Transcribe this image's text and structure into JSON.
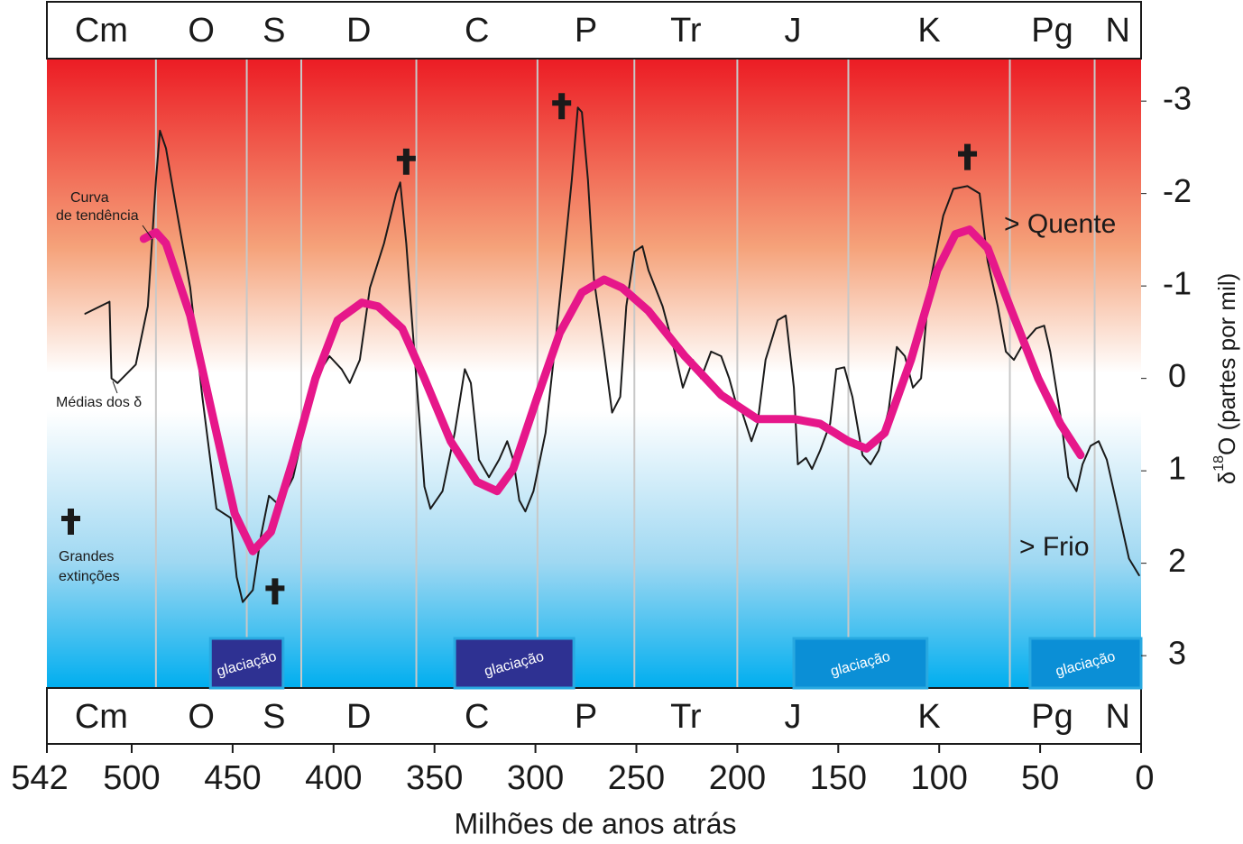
{
  "chart_data": {
    "type": "line",
    "xlabel": "Milhões de anos atrás",
    "ylabel": {
      "symbol": "δ",
      "sup": "18",
      "rest": "O (partes por mil)"
    },
    "xlim": [
      542,
      0
    ],
    "xticks": [
      542,
      500,
      450,
      400,
      350,
      300,
      250,
      200,
      150,
      100,
      50,
      0
    ],
    "ylim": [
      -3.46,
      3.35
    ],
    "y_inverted": true,
    "yticks": [
      -3,
      -2,
      -1,
      0,
      1,
      2,
      3
    ],
    "periods": [
      {
        "name": "Cm",
        "start": 542,
        "end": 488
      },
      {
        "name": "O",
        "start": 488,
        "end": 443
      },
      {
        "name": "S",
        "start": 443,
        "end": 416
      },
      {
        "name": "D",
        "start": 416,
        "end": 359
      },
      {
        "name": "C",
        "start": 359,
        "end": 299
      },
      {
        "name": "P",
        "start": 299,
        "end": 251
      },
      {
        "name": "Tr",
        "start": 251,
        "end": 200
      },
      {
        "name": "J",
        "start": 200,
        "end": 145
      },
      {
        "name": "K",
        "start": 145,
        "end": 65
      },
      {
        "name": "Pg",
        "start": 65,
        "end": 23
      },
      {
        "name": "N",
        "start": 23,
        "end": 0
      }
    ],
    "series": [
      {
        "color": "#1a1a1a",
        "x": [
          523,
          511,
          510,
          507,
          498,
          492,
          488,
          486,
          483,
          478,
          471,
          465,
          458,
          451,
          448,
          445,
          440,
          436,
          432,
          427,
          420,
          413,
          409,
          402,
          396,
          392,
          387,
          382,
          375,
          369,
          367,
          364,
          360,
          355,
          352,
          346,
          340,
          335,
          332,
          328,
          323,
          318,
          314,
          311,
          308,
          305,
          301,
          295,
          291,
          286,
          282,
          279,
          277,
          274,
          271,
          266,
          262,
          258,
          255,
          251,
          247,
          244,
          237,
          231,
          227,
          222,
          218,
          213,
          208,
          204,
          201,
          198,
          193,
          190,
          186,
          180,
          176,
          172,
          170,
          166,
          163,
          159,
          154,
          151,
          147,
          143,
          138,
          134,
          130,
          125,
          121,
          117,
          113,
          109,
          105,
          98,
          93,
          86,
          80,
          76,
          71,
          67,
          63,
          58,
          52,
          48,
          45,
          40,
          36,
          32,
          29,
          25,
          21,
          17,
          11,
          6,
          1
        ],
        "values": [
          -0.7,
          -0.83,
          0,
          0.05,
          -0.15,
          -0.78,
          -2.15,
          -2.68,
          -2.49,
          -1.85,
          -0.98,
          0.2,
          1.41,
          1.51,
          2.15,
          2.42,
          2.29,
          1.71,
          1.27,
          1.37,
          1.07,
          0.39,
          0,
          -0.24,
          -0.1,
          0.05,
          -0.2,
          -0.98,
          -1.46,
          -2.0,
          -2.12,
          -1.46,
          -0.29,
          1.17,
          1.41,
          1.22,
          0.59,
          -0.1,
          0.05,
          0.88,
          1.07,
          0.88,
          0.68,
          0.88,
          1.32,
          1.44,
          1.22,
          0.59,
          -0.2,
          -1.27,
          -2.15,
          -2.93,
          -2.88,
          -2.15,
          -1.07,
          -0.29,
          0.37,
          0.2,
          -0.78,
          -1.37,
          -1.43,
          -1.17,
          -0.78,
          -0.29,
          0.1,
          -0.2,
          0,
          -0.29,
          -0.24,
          0,
          0.24,
          0.34,
          0.68,
          0.49,
          -0.2,
          -0.63,
          -0.68,
          0.1,
          0.93,
          0.86,
          0.98,
          0.78,
          0.49,
          -0.1,
          -0.12,
          0.2,
          0.83,
          0.93,
          0.78,
          0.34,
          -0.34,
          -0.24,
          0.1,
          0,
          -0.98,
          -1.76,
          -2.05,
          -2.08,
          -2.0,
          -1.27,
          -0.78,
          -0.29,
          -0.2,
          -0.39,
          -0.54,
          -0.57,
          -0.29,
          0.39,
          1.07,
          1.22,
          0.93,
          0.73,
          0.68,
          0.88,
          1.46,
          1.95,
          2.13
        ]
      },
      {
        "color": "#e6178a",
        "x": [
          494,
          488,
          483,
          471,
          458,
          449,
          440,
          431,
          420,
          409,
          398,
          386,
          378,
          366,
          355,
          342,
          329,
          319,
          311,
          299,
          288,
          277,
          266,
          257,
          244,
          226,
          208,
          190,
          172,
          159,
          145,
          136,
          127,
          114,
          101,
          92,
          85,
          76,
          65,
          51,
          40,
          30
        ],
        "values": [
          -1.51,
          -1.58,
          -1.46,
          -0.68,
          0.59,
          1.46,
          1.87,
          1.66,
          0.88,
          0,
          -0.63,
          -0.82,
          -0.78,
          -0.54,
          0,
          0.68,
          1.12,
          1.22,
          0.98,
          0.2,
          -0.49,
          -0.93,
          -1.07,
          -0.98,
          -0.73,
          -0.24,
          0.18,
          0.44,
          0.44,
          0.49,
          0.68,
          0.76,
          0.59,
          -0.2,
          -1.17,
          -1.56,
          -1.61,
          -1.41,
          -0.78,
          0,
          0.49,
          0.83
        ]
      }
    ],
    "glaciations": [
      {
        "start": 461,
        "end": 425,
        "color": "#2e3192",
        "label": "glaciação"
      },
      {
        "start": 340,
        "end": 281,
        "color": "#2e3192",
        "label": "glaciação"
      },
      {
        "start": 172,
        "end": 106,
        "color": "#0b8fd6",
        "label": "glaciação"
      },
      {
        "start": 55,
        "end": 0,
        "color": "#0b8fd6",
        "label": "glaciação"
      }
    ],
    "extinctions": [
      {
        "x": 429,
        "y": 2.3
      },
      {
        "x": 364,
        "y": -2.35
      },
      {
        "x": 287,
        "y": -2.95
      },
      {
        "x": 86,
        "y": -2.4
      }
    ],
    "annotations": {
      "trend": [
        "Curva",
        "de tendência"
      ],
      "means": "Médias dos δ",
      "extinctions": [
        "Grandes",
        "extinções"
      ],
      "warm": "> Quente",
      "cold": "> Frio"
    }
  }
}
